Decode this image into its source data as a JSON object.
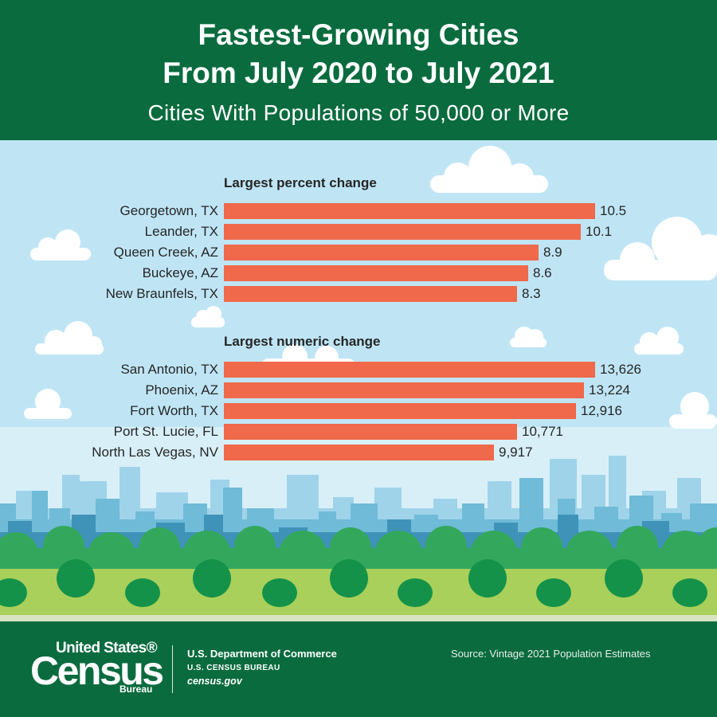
{
  "header": {
    "title_line1": "Fastest-Growing Cities",
    "title_line2": "From July 2020 to July 2021",
    "subtitle": "Cities With Populations of 50,000 or More"
  },
  "colors": {
    "header_green": "#0a6b3e",
    "bar_color": "#f0694a",
    "sky": "#bfe5f5"
  },
  "chart_data": [
    {
      "type": "bar",
      "orientation": "horizontal",
      "title": "Largest percent change",
      "categories": [
        "Georgetown, TX",
        "Leander, TX",
        "Queen Creek, AZ",
        "Buckeye, AZ",
        "New Braunfels, TX"
      ],
      "values": [
        10.5,
        10.1,
        8.9,
        8.6,
        8.3
      ],
      "value_labels": [
        "10.5",
        "10.1",
        "8.9",
        "8.6",
        "8.3"
      ],
      "xlim": [
        0,
        10.5
      ]
    },
    {
      "type": "bar",
      "orientation": "horizontal",
      "title": "Largest numeric change",
      "categories": [
        "San Antonio, TX",
        "Phoenix, AZ",
        "Fort Worth, TX",
        "Port St. Lucie, FL",
        "North Las Vegas, NV"
      ],
      "values": [
        13626,
        13224,
        12916,
        10771,
        9917
      ],
      "value_labels": [
        "13,626",
        "13,224",
        "12,916",
        "10,771",
        "9,917"
      ],
      "xlim": [
        0,
        13626
      ]
    }
  ],
  "footer": {
    "logo_line1": "United States®",
    "logo_line2": "Census",
    "logo_line3": "Bureau",
    "department": "U.S. Department of Commerce",
    "bureau": "U.S. CENSUS BUREAU",
    "website": "census.gov",
    "source": "Source: Vintage 2021 Population Estimates"
  }
}
